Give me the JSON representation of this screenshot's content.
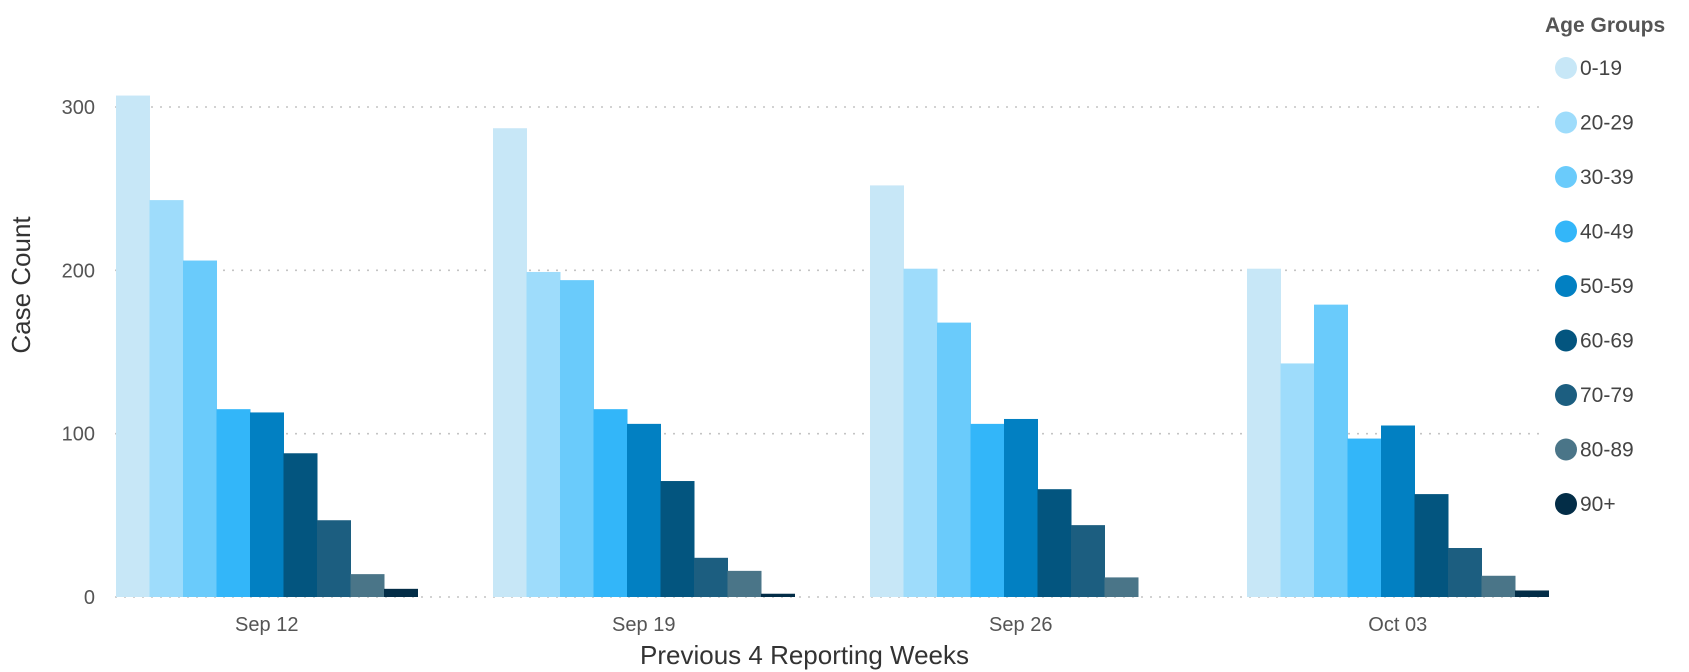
{
  "chart_data": {
    "type": "bar",
    "xlabel": "Previous 4 Reporting Weeks",
    "ylabel": "Case Count",
    "ylim": [
      0,
      300
    ],
    "yticks": [
      0,
      100,
      200,
      300
    ],
    "grid": "horizontal dotted",
    "legend_title": "Age Groups",
    "legend_position": "right",
    "categories": [
      "Sep 12",
      "Sep 19",
      "Sep 26",
      "Oct 03"
    ],
    "series": [
      {
        "name": "0-19",
        "color": "#c7e7f7",
        "values": [
          307,
          287,
          252,
          201
        ]
      },
      {
        "name": "20-29",
        "color": "#9edcfb",
        "values": [
          243,
          199,
          201,
          143
        ]
      },
      {
        "name": "30-39",
        "color": "#6acbfb",
        "values": [
          206,
          194,
          168,
          179
        ]
      },
      {
        "name": "40-49",
        "color": "#33b6f9",
        "values": [
          115,
          115,
          106,
          97
        ]
      },
      {
        "name": "50-59",
        "color": "#0280c2",
        "values": [
          113,
          106,
          109,
          105
        ]
      },
      {
        "name": "60-69",
        "color": "#03557f",
        "values": [
          88,
          71,
          66,
          63
        ]
      },
      {
        "name": "70-79",
        "color": "#1c5e80",
        "values": [
          47,
          24,
          44,
          30
        ]
      },
      {
        "name": "80-89",
        "color": "#4a7588",
        "values": [
          14,
          16,
          12,
          13
        ]
      },
      {
        "name": "90+",
        "color": "#032d47",
        "values": [
          5,
          2,
          0,
          4
        ]
      }
    ]
  }
}
